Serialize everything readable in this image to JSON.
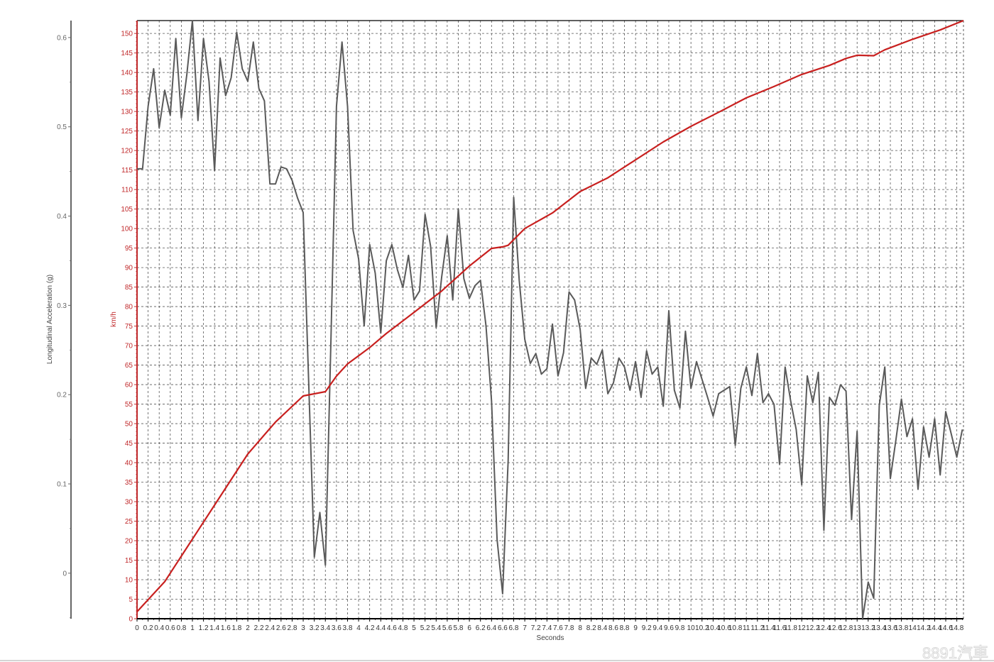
{
  "chart_data": {
    "type": "line",
    "xlabel": "Seconds",
    "ylabel_left": "Longitudinal Acceleration (g)",
    "ylabel_right": "km/h",
    "xlim": [
      0,
      14.92
    ],
    "ylim_left": [
      -0.051,
      0.619
    ],
    "ylim_speed": [
      0,
      153.3
    ],
    "grid": true,
    "x_tick_step": 0.2,
    "left_ticks": [
      "0",
      "0.1",
      "0.2",
      "0.3",
      "0.4",
      "0.5",
      "0.6"
    ],
    "speed_tick_step": 5,
    "colors": {
      "acceleration": "#5a5a5a",
      "speed": "#c8201f",
      "speed_axis": "#c0282a",
      "grid": "#555555"
    },
    "series": [
      {
        "axis": "left",
        "points": [
          [
            0,
            0.453
          ],
          [
            0.1,
            0.453
          ],
          [
            0.2,
            0.523
          ],
          [
            0.3,
            0.565
          ],
          [
            0.4,
            0.499
          ],
          [
            0.5,
            0.541
          ],
          [
            0.6,
            0.513
          ],
          [
            0.7,
            0.599
          ],
          [
            0.8,
            0.51
          ],
          [
            0.9,
            0.559
          ],
          [
            1.0,
            0.619
          ],
          [
            1.1,
            0.507
          ],
          [
            1.2,
            0.599
          ],
          [
            1.3,
            0.551
          ],
          [
            1.4,
            0.451
          ],
          [
            1.5,
            0.577
          ],
          [
            1.6,
            0.535
          ],
          [
            1.7,
            0.555
          ],
          [
            1.8,
            0.606
          ],
          [
            1.9,
            0.565
          ],
          [
            2.0,
            0.551
          ],
          [
            2.1,
            0.595
          ],
          [
            2.2,
            0.543
          ],
          [
            2.3,
            0.529
          ],
          [
            2.4,
            0.436
          ],
          [
            2.5,
            0.436
          ],
          [
            2.6,
            0.455
          ],
          [
            2.7,
            0.453
          ],
          [
            2.8,
            0.44
          ],
          [
            2.9,
            0.42
          ],
          [
            3.0,
            0.404
          ],
          [
            3.1,
            0.213
          ],
          [
            3.2,
            0.018
          ],
          [
            3.3,
            0.068
          ],
          [
            3.4,
            0.009
          ],
          [
            3.5,
            0.261
          ],
          [
            3.6,
            0.523
          ],
          [
            3.7,
            0.595
          ],
          [
            3.8,
            0.523
          ],
          [
            3.9,
            0.384
          ],
          [
            4.0,
            0.352
          ],
          [
            4.1,
            0.277
          ],
          [
            4.2,
            0.368
          ],
          [
            4.3,
            0.336
          ],
          [
            4.4,
            0.269
          ],
          [
            4.5,
            0.35
          ],
          [
            4.6,
            0.368
          ],
          [
            4.7,
            0.34
          ],
          [
            4.8,
            0.32
          ],
          [
            4.9,
            0.356
          ],
          [
            5.0,
            0.306
          ],
          [
            5.1,
            0.316
          ],
          [
            5.2,
            0.402
          ],
          [
            5.3,
            0.366
          ],
          [
            5.4,
            0.275
          ],
          [
            5.5,
            0.332
          ],
          [
            5.6,
            0.378
          ],
          [
            5.7,
            0.306
          ],
          [
            5.8,
            0.408
          ],
          [
            5.9,
            0.33
          ],
          [
            6.0,
            0.308
          ],
          [
            6.1,
            0.322
          ],
          [
            6.2,
            0.328
          ],
          [
            6.3,
            0.277
          ],
          [
            6.4,
            0.193
          ],
          [
            6.5,
            0.038
          ],
          [
            6.6,
            -0.023
          ],
          [
            6.7,
            0.126
          ],
          [
            6.8,
            0.421
          ],
          [
            6.9,
            0.328
          ],
          [
            7.0,
            0.262
          ],
          [
            7.1,
            0.235
          ],
          [
            7.2,
            0.246
          ],
          [
            7.3,
            0.223
          ],
          [
            7.4,
            0.229
          ],
          [
            7.5,
            0.279
          ],
          [
            7.6,
            0.221
          ],
          [
            7.7,
            0.247
          ],
          [
            7.8,
            0.315
          ],
          [
            7.9,
            0.306
          ],
          [
            8.0,
            0.273
          ],
          [
            8.1,
            0.207
          ],
          [
            8.2,
            0.241
          ],
          [
            8.3,
            0.234
          ],
          [
            8.4,
            0.25
          ],
          [
            8.5,
            0.201
          ],
          [
            8.6,
            0.213
          ],
          [
            8.7,
            0.241
          ],
          [
            8.8,
            0.231
          ],
          [
            8.9,
            0.205
          ],
          [
            9.0,
            0.237
          ],
          [
            9.1,
            0.197
          ],
          [
            9.2,
            0.249
          ],
          [
            9.3,
            0.223
          ],
          [
            9.4,
            0.231
          ],
          [
            9.5,
            0.187
          ],
          [
            9.6,
            0.294
          ],
          [
            9.7,
            0.205
          ],
          [
            9.8,
            0.185
          ],
          [
            9.9,
            0.271
          ],
          [
            10.0,
            0.207
          ],
          [
            10.1,
            0.237
          ],
          [
            10.2,
            0.217
          ],
          [
            10.3,
            0.197
          ],
          [
            10.4,
            0.176
          ],
          [
            10.5,
            0.201
          ],
          [
            10.6,
            0.205
          ],
          [
            10.7,
            0.209
          ],
          [
            10.8,
            0.143
          ],
          [
            10.9,
            0.207
          ],
          [
            11.0,
            0.231
          ],
          [
            11.1,
            0.199
          ],
          [
            11.2,
            0.246
          ],
          [
            11.3,
            0.191
          ],
          [
            11.4,
            0.201
          ],
          [
            11.5,
            0.189
          ],
          [
            11.6,
            0.122
          ],
          [
            11.7,
            0.231
          ],
          [
            11.8,
            0.193
          ],
          [
            11.9,
            0.161
          ],
          [
            12.0,
            0.099
          ],
          [
            12.1,
            0.221
          ],
          [
            12.2,
            0.191
          ],
          [
            12.3,
            0.225
          ],
          [
            12.4,
            0.048
          ],
          [
            12.5,
            0.197
          ],
          [
            12.6,
            0.188
          ],
          [
            12.7,
            0.211
          ],
          [
            12.8,
            0.204
          ],
          [
            12.9,
            0.06
          ],
          [
            13.0,
            0.159
          ],
          [
            13.1,
            -0.051
          ],
          [
            13.2,
            -0.01
          ],
          [
            13.3,
            -0.028
          ],
          [
            13.4,
            0.188
          ],
          [
            13.5,
            0.231
          ],
          [
            13.6,
            0.106
          ],
          [
            13.7,
            0.149
          ],
          [
            13.8,
            0.195
          ],
          [
            13.9,
            0.153
          ],
          [
            14.0,
            0.173
          ],
          [
            14.1,
            0.094
          ],
          [
            14.2,
            0.164
          ],
          [
            14.3,
            0.13
          ],
          [
            14.4,
            0.173
          ],
          [
            14.5,
            0.11
          ],
          [
            14.6,
            0.181
          ],
          [
            14.7,
            0.156
          ],
          [
            14.8,
            0.13
          ],
          [
            14.9,
            0.161
          ]
        ]
      },
      {
        "axis": "speed",
        "points": [
          [
            0,
            1.8
          ],
          [
            0.5,
            9.5
          ],
          [
            1.0,
            20.4
          ],
          [
            1.5,
            31.3
          ],
          [
            2.0,
            42.2
          ],
          [
            2.5,
            50.4
          ],
          [
            3.0,
            57.1
          ],
          [
            3.4,
            58.2
          ],
          [
            3.6,
            62.2
          ],
          [
            3.8,
            65.3
          ],
          [
            4.2,
            69.5
          ],
          [
            4.5,
            73.1
          ],
          [
            5.0,
            78.5
          ],
          [
            5.5,
            84.0
          ],
          [
            6.0,
            90.4
          ],
          [
            6.4,
            94.9
          ],
          [
            6.6,
            95.3
          ],
          [
            6.7,
            95.7
          ],
          [
            7.0,
            100.0
          ],
          [
            7.5,
            104.0
          ],
          [
            8.0,
            109.5
          ],
          [
            8.5,
            113.0
          ],
          [
            9.0,
            117.6
          ],
          [
            9.5,
            122.2
          ],
          [
            10.0,
            126.2
          ],
          [
            10.5,
            129.8
          ],
          [
            11.0,
            133.5
          ],
          [
            11.5,
            136.4
          ],
          [
            12.0,
            139.5
          ],
          [
            12.5,
            141.8
          ],
          [
            12.8,
            143.6
          ],
          [
            13.0,
            144.4
          ],
          [
            13.3,
            144.3
          ],
          [
            13.5,
            145.8
          ],
          [
            14.0,
            148.5
          ],
          [
            14.5,
            150.9
          ],
          [
            14.92,
            153.3
          ]
        ]
      }
    ]
  },
  "watermark": "8891汽車"
}
